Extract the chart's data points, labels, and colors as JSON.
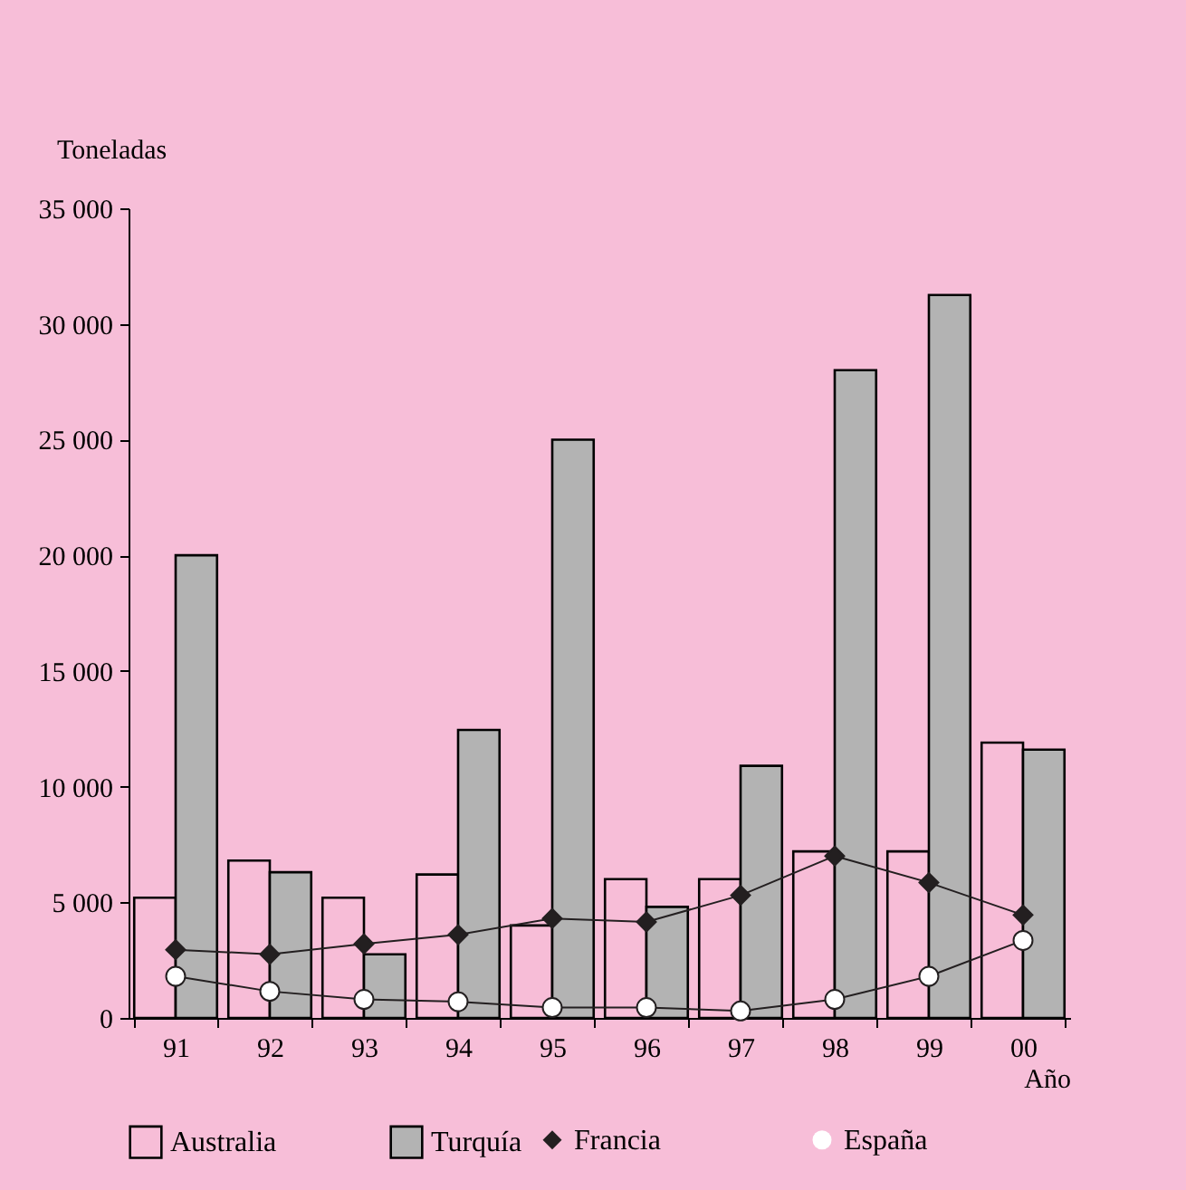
{
  "chart_data": {
    "type": "bar",
    "xlabel": "Año",
    "ylabel": "Toneladas",
    "categories": [
      "91",
      "92",
      "93",
      "94",
      "95",
      "96",
      "97",
      "98",
      "99",
      "00"
    ],
    "series": [
      {
        "name": "Australia",
        "color": "#f7bdd7",
        "values": [
          5200,
          6800,
          5200,
          6200,
          4000,
          6000,
          6000,
          7200,
          7200,
          11900
        ]
      },
      {
        "name": "Turquía",
        "color": "#b3b3b3",
        "values": [
          20000,
          6300,
          2750,
          12450,
          25000,
          4800,
          10900,
          28000,
          31250,
          11600
        ]
      },
      {
        "name": "Francia",
        "type": "line",
        "marker": "diamond",
        "color": "#231f20",
        "values": [
          2950,
          2750,
          3200,
          3600,
          4300,
          4150,
          5300,
          7000,
          5850,
          4450
        ]
      },
      {
        "name": "España",
        "type": "line",
        "marker": "circle",
        "color": "#ffffff",
        "values": [
          1800,
          1150,
          800,
          700,
          450,
          450,
          300,
          800,
          1800,
          3350
        ]
      }
    ],
    "ylim": [
      0,
      35000
    ],
    "yticks": [
      0,
      {
        "value": 5000,
        "label": "5 000"
      },
      {
        "value": 10000,
        "label": "10 000"
      },
      {
        "value": 15000,
        "label": "15 000"
      },
      {
        "value": 20000,
        "label": "20 000"
      },
      {
        "value": 25000,
        "label": "25 000"
      },
      {
        "value": 30000,
        "label": "30 000"
      },
      {
        "value": 35000,
        "label": "35 000"
      }
    ],
    "grid": false,
    "legend": "bottom"
  }
}
